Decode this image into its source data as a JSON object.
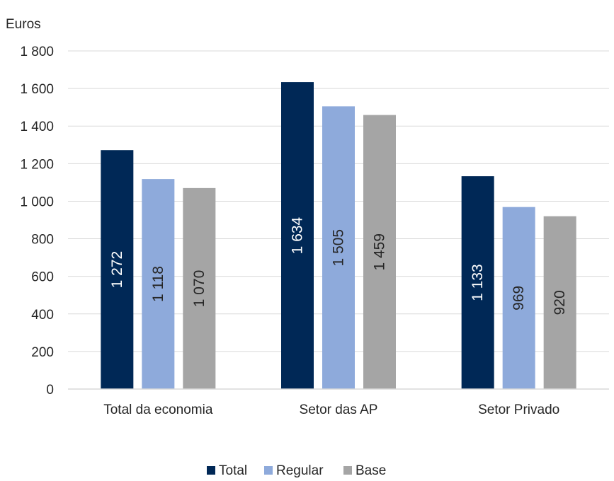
{
  "chart_data": {
    "type": "bar",
    "ylabel": "Euros",
    "ylim": [
      0,
      1800
    ],
    "yticks": [
      0,
      200,
      400,
      600,
      800,
      1000,
      1200,
      1400,
      1600,
      1800
    ],
    "ytick_labels": [
      "0",
      "200",
      "400",
      "600",
      "800",
      "1 000",
      "1 200",
      "1 400",
      "1 600",
      "1 800"
    ],
    "grid": true,
    "legend_position": "bottom",
    "categories": [
      "Total da economia",
      "Setor das AP",
      "Setor Privado"
    ],
    "series": [
      {
        "name": "Total",
        "color": "#002856",
        "label_color": "#ffffff",
        "values": [
          1272,
          1634,
          1133
        ],
        "labels": [
          "1 272",
          "1 634",
          "1 133"
        ]
      },
      {
        "name": "Regular",
        "color": "#8eaadb",
        "label_color": "#262626",
        "values": [
          1118,
          1505,
          969
        ],
        "labels": [
          "1 118",
          "1 505",
          "969"
        ]
      },
      {
        "name": "Base",
        "color": "#a5a5a5",
        "label_color": "#262626",
        "values": [
          1070,
          1459,
          920
        ],
        "labels": [
          "1 070",
          "1 459",
          "920"
        ]
      }
    ]
  }
}
